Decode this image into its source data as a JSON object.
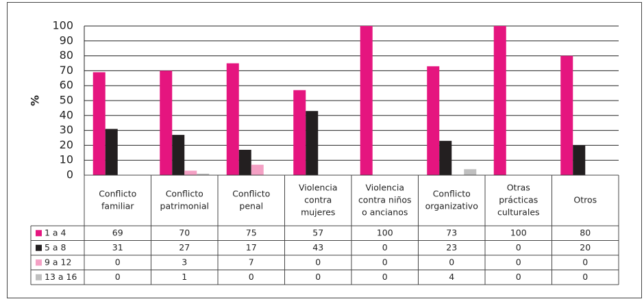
{
  "chart_data": {
    "type": "bar",
    "ylabel": "%",
    "categories": [
      [
        "Conflicto",
        "familiar"
      ],
      [
        "Conflicto",
        "patrimonial"
      ],
      [
        "Conflicto",
        "penal"
      ],
      [
        "Violencia",
        "contra",
        "mujeres"
      ],
      [
        "Violencia",
        "contra niños",
        "o ancianos"
      ],
      [
        "Conflicto",
        "organizativo"
      ],
      [
        "Otras",
        "prácticas",
        "culturales"
      ],
      [
        "Otros"
      ]
    ],
    "series": [
      {
        "name": "1 a 4",
        "color": "#e5157f",
        "values": [
          69,
          70,
          75,
          57,
          100,
          73,
          100,
          80
        ]
      },
      {
        "name": "5 a 8",
        "color": "#231f20",
        "values": [
          31,
          27,
          17,
          43,
          0,
          23,
          0,
          20
        ]
      },
      {
        "name": "9 a 12",
        "color": "#f4a0c4",
        "values": [
          0,
          3,
          7,
          0,
          0,
          0,
          0,
          0
        ]
      },
      {
        "name": "13 a 16",
        "color": "#bfbfbf",
        "values": [
          0,
          1,
          0,
          0,
          0,
          4,
          0,
          0
        ]
      }
    ],
    "ylim": [
      0,
      100
    ],
    "yticks": [
      0,
      10,
      20,
      30,
      40,
      50,
      60,
      70,
      80,
      90,
      100
    ],
    "grid": true
  }
}
